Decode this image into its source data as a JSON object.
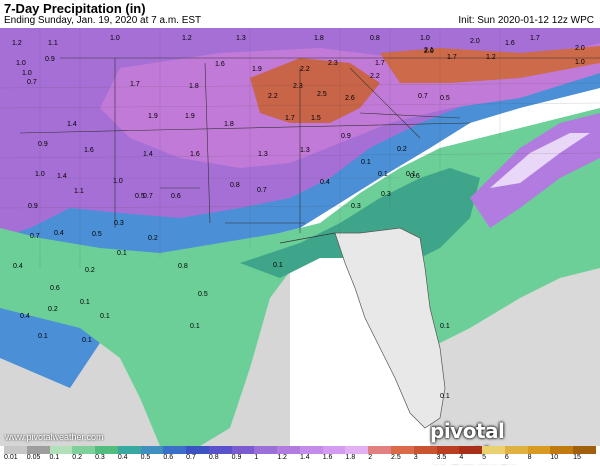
{
  "header": {
    "title": "7-Day Precipitation (in)",
    "subtitle": "Ending Sunday, Jan. 19, 2020 at 7 a.m. EST",
    "init": "Init: Sun 2020-01-12 12z WPC"
  },
  "footer": {
    "credit": "www.pivotalweather.com",
    "logo": "pivotal weather"
  },
  "legend": {
    "ticks": [
      "0.01",
      "0.05",
      "0.1",
      "0.2",
      "0.3",
      "0.4",
      "0.5",
      "0.6",
      "0.7",
      "0.8",
      "0.9",
      "1",
      "1.2",
      "1.4",
      "1.6",
      "1.8",
      "2",
      "2.5",
      "3",
      "3.5",
      "4",
      "5",
      "6",
      "8",
      "10",
      "15"
    ],
    "colors": [
      "#c7c7c7",
      "#9e9e9e",
      "#b2e0b8",
      "#7fd09a",
      "#52bd7e",
      "#3aa8a0",
      "#3f8fbf",
      "#3a6fc8",
      "#3a53c0",
      "#5a52c8",
      "#7b5ccf",
      "#9b6fd8",
      "#b27be0",
      "#c58be8",
      "#d69bf0",
      "#e4b0f4",
      "#e08080",
      "#d96a4a",
      "#c85530",
      "#b84020",
      "#a83018",
      "#ead070",
      "#e0b040",
      "#d89a20",
      "#c07a10",
      "#a06010"
    ]
  },
  "map_labels": [
    {
      "t": "1.2"
    },
    {
      "t": "1.1"
    },
    {
      "t": "1.0"
    },
    {
      "t": "0.9"
    },
    {
      "t": "0.7"
    },
    {
      "t": "1.0"
    },
    {
      "t": "1.0"
    },
    {
      "t": "1.2"
    },
    {
      "t": "1.3"
    },
    {
      "t": "1.8"
    },
    {
      "t": "0.8"
    },
    {
      "t": "1.0"
    },
    {
      "t": "2.0"
    },
    {
      "t": "2.0"
    },
    {
      "t": "1.6"
    },
    {
      "t": "1.7"
    },
    {
      "t": "2.0"
    },
    {
      "t": "1.0"
    },
    {
      "t": "1.7"
    },
    {
      "t": "1.8"
    },
    {
      "t": "1.6"
    },
    {
      "t": "1.9"
    },
    {
      "t": "2.2"
    },
    {
      "t": "2.3"
    },
    {
      "t": "2.1"
    },
    {
      "t": "1.7"
    },
    {
      "t": "1.7"
    },
    {
      "t": "1.2"
    },
    {
      "t": "2.2"
    },
    {
      "t": "2.3"
    },
    {
      "t": "2.5"
    },
    {
      "t": "2.6"
    },
    {
      "t": "2.2"
    },
    {
      "t": "0.7"
    },
    {
      "t": "0.5"
    },
    {
      "t": "1.9"
    },
    {
      "t": "1.9"
    },
    {
      "t": "1.8"
    },
    {
      "t": "1.7"
    },
    {
      "t": "1.5"
    },
    {
      "t": "0.9"
    },
    {
      "t": "1.4"
    },
    {
      "t": "1.6"
    },
    {
      "t": "1.4"
    },
    {
      "t": "1.6"
    },
    {
      "t": "1.3"
    },
    {
      "t": "1.3"
    },
    {
      "t": "0.9"
    },
    {
      "t": "1.0"
    },
    {
      "t": "1.4"
    },
    {
      "t": "1.1"
    },
    {
      "t": "1.0"
    },
    {
      "t": "0.7"
    },
    {
      "t": "0.5"
    },
    {
      "t": "0.6"
    },
    {
      "t": "0.8"
    },
    {
      "t": "0.7"
    },
    {
      "t": "0.4"
    },
    {
      "t": "0.3"
    },
    {
      "t": "0.1"
    },
    {
      "t": "0.3"
    },
    {
      "t": "0.2"
    },
    {
      "t": "0.1"
    },
    {
      "t": "0.1"
    },
    {
      "t": "0.6"
    },
    {
      "t": "0.4"
    },
    {
      "t": "0.5"
    },
    {
      "t": "0.3"
    },
    {
      "t": "0.2"
    },
    {
      "t": "0.1"
    },
    {
      "t": "0.8"
    },
    {
      "t": "0.4"
    },
    {
      "t": "0.2"
    },
    {
      "t": "0.1"
    },
    {
      "t": "0.1"
    },
    {
      "t": "0.5"
    },
    {
      "t": "0.4"
    },
    {
      "t": "0.2"
    },
    {
      "t": "0.1"
    },
    {
      "t": "0.1"
    },
    {
      "t": "0.1"
    },
    {
      "t": "0.1"
    },
    {
      "t": "0.1"
    },
    {
      "t": "0.1"
    },
    {
      "t": "0.9"
    },
    {
      "t": "0.6"
    },
    {
      "t": "0.7"
    }
  ]
}
